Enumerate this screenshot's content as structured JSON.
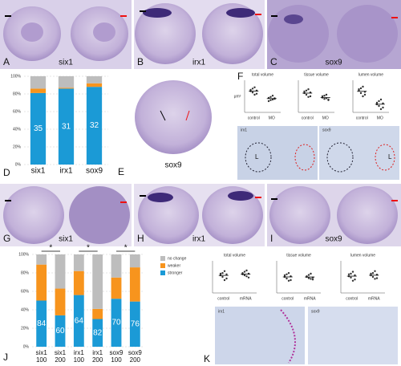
{
  "images": [
    {
      "letter": "A",
      "label": "six1"
    },
    {
      "letter": "B",
      "label": "irx1"
    },
    {
      "letter": "C",
      "label": "sox9"
    },
    {
      "letter": "E",
      "label": "sox9"
    },
    {
      "letter": "G",
      "label": "six1"
    },
    {
      "letter": "H",
      "label": "irx1"
    },
    {
      "letter": "I",
      "label": "sox9"
    }
  ],
  "sections": [
    {
      "letter": "F",
      "labels": [
        "irx1",
        "sox9",
        "L",
        "L"
      ]
    },
    {
      "letter": "K",
      "labels": [
        "irx1",
        "sox9"
      ]
    },
    {
      "letter": "D"
    },
    {
      "letter": "J"
    }
  ],
  "chart_data": [
    {
      "type": "stacked_bar",
      "categories": [
        "six1",
        "irx1",
        "sox9"
      ],
      "series": [
        {
          "color": "#1b9ad6",
          "values": [
            81,
            86,
            88
          ]
        },
        {
          "color": "#f7941d",
          "values": [
            5,
            1,
            4
          ]
        },
        {
          "color": "#bdbdbd",
          "values": [
            14,
            13,
            8
          ]
        }
      ],
      "counts": [
        35,
        31,
        32
      ],
      "ylim": [
        0,
        100
      ],
      "yticks": [
        {
          "value": 0,
          "label": "0%"
        },
        {
          "value": 20,
          "label": "20%"
        },
        {
          "value": 40,
          "label": "40%"
        },
        {
          "value": 60,
          "label": "60%"
        },
        {
          "value": 80,
          "label": "80%"
        },
        {
          "value": 100,
          "label": "100%"
        }
      ],
      "grid": true
    },
    {
      "type": "scatter",
      "title": "total volume",
      "ylabel": "μm³",
      "categories": [
        "control",
        "MO"
      ],
      "ylim": [
        0,
        100
      ],
      "series": [
        {
          "color": "#333",
          "values": [
            70,
            62,
            78,
            58,
            66,
            74,
            55,
            68
          ]
        },
        {
          "color": "#333",
          "values": [
            45,
            38,
            52,
            42,
            35,
            48,
            40,
            44
          ]
        }
      ]
    },
    {
      "type": "scatter",
      "title": "tissue volume",
      "categories": [
        "control",
        "MO"
      ],
      "ylim": [
        0,
        100
      ],
      "series": [
        {
          "color": "#333",
          "values": [
            65,
            55,
            72,
            50,
            60,
            68,
            48,
            62
          ]
        },
        {
          "color": "#333",
          "values": [
            50,
            42,
            55,
            38,
            46,
            52,
            44,
            40
          ]
        }
      ]
    },
    {
      "type": "scatter",
      "title": "lumen volume",
      "categories": [
        "control",
        "MO"
      ],
      "ylim": [
        0,
        100
      ],
      "series": [
        {
          "color": "#333",
          "values": [
            72,
            60,
            80,
            55,
            68,
            75,
            50,
            64
          ]
        },
        {
          "color": "#333",
          "values": [
            30,
            20,
            40,
            15,
            25,
            35,
            10,
            28
          ]
        }
      ]
    },
    {
      "type": "stacked_bar",
      "categories": [
        "six1",
        "six1",
        "irx1",
        "irx1",
        "sox9",
        "sox9"
      ],
      "doses": [
        "100",
        "200",
        "100",
        "200",
        "100",
        "200"
      ],
      "series": [
        {
          "name": "stronger",
          "color": "#1b9ad6",
          "values": [
            50,
            34,
            56,
            30,
            52,
            49
          ]
        },
        {
          "name": "weaker",
          "color": "#f7941d",
          "values": [
            39,
            29,
            26,
            11,
            23,
            37
          ]
        },
        {
          "name": "no change",
          "color": "#bdbdbd",
          "values": [
            11,
            37,
            18,
            59,
            25,
            14
          ]
        }
      ],
      "counts": [
        84,
        60,
        64,
        82,
        70,
        76
      ],
      "ylim": [
        0,
        100
      ],
      "yticks": [
        {
          "value": 0,
          "label": "0%"
        },
        {
          "value": 20,
          "label": "20%"
        },
        {
          "value": 40,
          "label": "40%"
        },
        {
          "value": 60,
          "label": "60%"
        },
        {
          "value": 80,
          "label": "80%"
        },
        {
          "value": 100,
          "label": "100%"
        }
      ],
      "grid": true,
      "annotations": [
        {
          "text": "*",
          "pair": [
            0,
            1
          ]
        },
        {
          "text": "*",
          "pair": [
            2,
            3
          ]
        },
        {
          "text": "*",
          "pair": [
            4,
            5
          ]
        }
      ]
    },
    {
      "type": "scatter",
      "title": "total volume",
      "categories": [
        "control",
        "mRNA"
      ],
      "ylim": [
        0,
        100
      ],
      "series": [
        {
          "color": "#333",
          "values": [
            60,
            50,
            68,
            45,
            55,
            62,
            40,
            58
          ]
        },
        {
          "color": "#333",
          "values": [
            62,
            55,
            70,
            48,
            58,
            66,
            52,
            60
          ]
        }
      ]
    },
    {
      "type": "scatter",
      "title": "tissue volume",
      "categories": [
        "control",
        "mRNA"
      ],
      "ylim": [
        0,
        100
      ],
      "series": [
        {
          "color": "#333",
          "values": [
            55,
            45,
            62,
            40,
            50,
            58,
            38,
            52
          ]
        },
        {
          "color": "#333",
          "values": [
            52,
            46,
            60,
            42,
            50,
            56,
            44,
            48
          ]
        }
      ]
    },
    {
      "type": "scatter",
      "title": "lumen volume",
      "categories": [
        "control",
        "mRNA"
      ],
      "ylim": [
        0,
        100
      ],
      "series": [
        {
          "color": "#333",
          "values": [
            58,
            48,
            66,
            42,
            52,
            60,
            38,
            55
          ]
        },
        {
          "color": "#333",
          "values": [
            60,
            50,
            68,
            46,
            55,
            62,
            44,
            57
          ]
        }
      ]
    }
  ]
}
